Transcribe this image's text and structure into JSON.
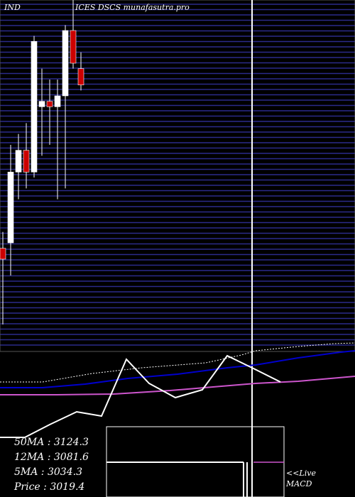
{
  "header": {
    "left": "IND",
    "right": "ICES DSCS munafasutra.pro"
  },
  "chart_data": {
    "type": "candlestick",
    "price_scale": {
      "min": 2550,
      "max": 2850
    },
    "candles": [
      {
        "open": 2635,
        "high": 2650,
        "low": 2565,
        "close": 2625
      },
      {
        "open": 2640,
        "high": 2730,
        "low": 2610,
        "close": 2705
      },
      {
        "open": 2705,
        "high": 2740,
        "low": 2680,
        "close": 2725
      },
      {
        "open": 2725,
        "high": 2750,
        "low": 2690,
        "close": 2705
      },
      {
        "open": 2705,
        "high": 2830,
        "low": 2700,
        "close": 2825
      },
      {
        "open": 2765,
        "high": 2800,
        "low": 2720,
        "close": 2770
      },
      {
        "open": 2770,
        "high": 2790,
        "low": 2730,
        "close": 2765
      },
      {
        "open": 2765,
        "high": 2790,
        "low": 2680,
        "close": 2775
      },
      {
        "open": 2775,
        "high": 2840,
        "low": 2690,
        "close": 2835
      },
      {
        "open": 2835,
        "high": 2865,
        "low": 2800,
        "close": 2805
      },
      {
        "open": 2800,
        "high": 2815,
        "low": 2780,
        "close": 2785
      }
    ],
    "moving_averages": [
      {
        "label": "50MA",
        "value": "3124.3"
      },
      {
        "label": "12MA",
        "value": "3081.6"
      },
      {
        "label": "5MA",
        "value": "3034.3"
      },
      {
        "label": "Price",
        "value": "3019.4"
      }
    ],
    "indicator_label": "<<Live\nMACD",
    "colors": {
      "background": "#000000",
      "grid": "#2b2b8a",
      "up": "#ffffff",
      "down": "#cc0000",
      "ma_blue": "#0000cc",
      "ma_pink": "#cc55cc",
      "line_white": "#ffffff"
    }
  }
}
